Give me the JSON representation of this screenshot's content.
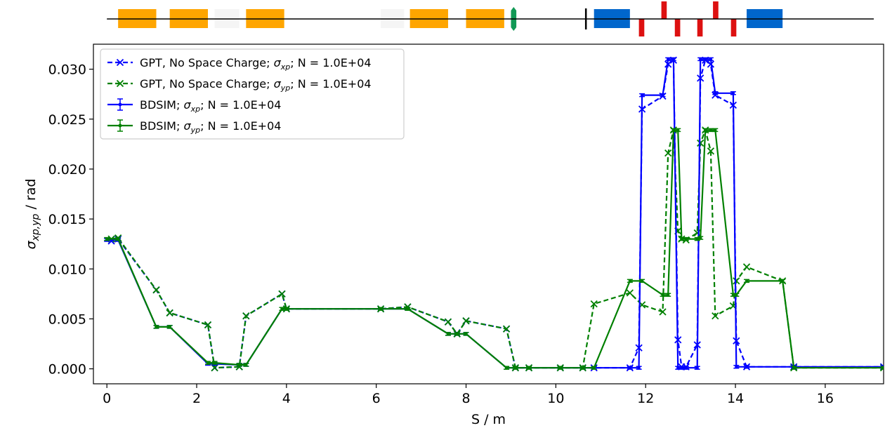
{
  "chart_data": {
    "type": "line",
    "xlabel": "S / m",
    "ylabel": "σ_xp,yp / rad",
    "xlim": [
      -0.3,
      17.3
    ],
    "ylim": [
      -0.0015,
      0.0325
    ],
    "xticks": [
      0,
      2,
      4,
      6,
      8,
      10,
      12,
      14,
      16
    ],
    "yticks": [
      0.0,
      0.005,
      0.01,
      0.015,
      0.02,
      0.025,
      0.03
    ],
    "ytick_labels": [
      "0.000",
      "0.005",
      "0.010",
      "0.015",
      "0.020",
      "0.025",
      "0.030"
    ],
    "legend_position": "top-left",
    "series": [
      {
        "name": "GPT, No Space Charge; σ_xp; N = 1.0E+04",
        "legend_prefix": "GPT, No Space Charge; ",
        "legend_sigma_sub": "xp",
        "legend_suffix": "; N = 1.0E+04",
        "color": "#0000ff",
        "style": "dashed",
        "marker": "x",
        "x": [
          0.1,
          0.25,
          1.1,
          1.4,
          2.25,
          2.4,
          2.95,
          3.1,
          3.9,
          4.0,
          6.1,
          6.7,
          7.6,
          7.8,
          8.0,
          8.9,
          9.1,
          9.4,
          10.1,
          10.6,
          10.85,
          11.65,
          11.85,
          11.92,
          12.38,
          12.5,
          12.62,
          12.72,
          12.8,
          12.9,
          13.15,
          13.22,
          13.33,
          13.45,
          13.55,
          13.95,
          14.02,
          14.25,
          15.3,
          17.3
        ],
        "y": [
          0.0128,
          0.013,
          0.0079,
          0.0056,
          0.0044,
          0.0001,
          0.0002,
          0.0053,
          0.0075,
          0.006,
          0.006,
          0.0062,
          0.0047,
          0.0035,
          0.0048,
          0.004,
          0.0001,
          0.0001,
          0.0001,
          0.0001,
          0.0001,
          0.0001,
          0.0021,
          0.026,
          0.0273,
          0.0305,
          0.0309,
          0.0029,
          0.0002,
          0.0002,
          0.0024,
          0.0291,
          0.0309,
          0.0305,
          0.0274,
          0.0264,
          0.0028,
          0.0002,
          0.0002,
          0.0002
        ]
      },
      {
        "name": "GPT, No Space Charge; σ_yp; N = 1.0E+04",
        "legend_prefix": "GPT, No Space Charge; ",
        "legend_sigma_sub": "yp",
        "legend_suffix": "; N = 1.0E+04",
        "color": "#008000",
        "style": "dashed",
        "marker": "x",
        "x": [
          0.1,
          0.25,
          1.1,
          1.4,
          2.25,
          2.4,
          2.95,
          3.1,
          3.9,
          4.0,
          6.1,
          6.7,
          7.6,
          7.8,
          8.0,
          8.9,
          9.1,
          9.4,
          10.1,
          10.6,
          10.85,
          11.65,
          11.92,
          12.38,
          12.5,
          12.62,
          12.72,
          12.8,
          12.9,
          13.15,
          13.22,
          13.33,
          13.45,
          13.55,
          13.95,
          14.02,
          14.25,
          15.05,
          15.3,
          17.3
        ],
        "y": [
          0.013,
          0.0131,
          0.0079,
          0.0056,
          0.0044,
          0.0001,
          0.0002,
          0.0053,
          0.0075,
          0.006,
          0.006,
          0.0062,
          0.0047,
          0.0035,
          0.0048,
          0.004,
          0.0001,
          0.0001,
          0.0001,
          0.0001,
          0.0065,
          0.0076,
          0.0064,
          0.0057,
          0.0216,
          0.0239,
          0.0138,
          0.013,
          0.0129,
          0.0136,
          0.0226,
          0.0239,
          0.0218,
          0.0053,
          0.0063,
          0.0088,
          0.0102,
          0.0088,
          0.0001,
          0.0001
        ]
      },
      {
        "name": "BDSIM; σ_xp; N = 1.0E+04",
        "legend_prefix": "BDSIM; ",
        "legend_sigma_sub": "xp",
        "legend_suffix": "; N = 1.0E+04",
        "color": "#0000ff",
        "style": "solid",
        "marker": "errorbar",
        "x": [
          0.0,
          0.25,
          1.1,
          1.4,
          2.25,
          2.4,
          2.95,
          3.1,
          3.9,
          4.0,
          6.1,
          6.7,
          7.6,
          7.8,
          8.0,
          8.9,
          9.1,
          9.4,
          10.1,
          10.6,
          10.85,
          11.65,
          11.85,
          11.92,
          12.38,
          12.5,
          12.62,
          12.72,
          12.8,
          12.9,
          13.15,
          13.22,
          13.33,
          13.45,
          13.55,
          13.95,
          14.02,
          14.25,
          15.3,
          17.3
        ],
        "y": [
          0.0129,
          0.0129,
          0.0042,
          0.0042,
          0.0005,
          0.0005,
          0.0004,
          0.0004,
          0.006,
          0.006,
          0.006,
          0.006,
          0.0035,
          0.0035,
          0.0035,
          0.0001,
          0.0001,
          0.0001,
          0.0001,
          0.0001,
          0.0001,
          0.0001,
          0.0001,
          0.0274,
          0.0274,
          0.031,
          0.031,
          0.0001,
          0.0001,
          0.0001,
          0.0001,
          0.031,
          0.031,
          0.031,
          0.0276,
          0.0276,
          0.0002,
          0.0002,
          0.0002,
          0.0002
        ]
      },
      {
        "name": "BDSIM; σ_yp; N = 1.0E+04",
        "legend_prefix": "BDSIM; ",
        "legend_sigma_sub": "yp",
        "legend_suffix": "; N = 1.0E+04",
        "color": "#008000",
        "style": "solid",
        "marker": "errorbar",
        "x": [
          0.0,
          0.25,
          1.1,
          1.4,
          2.25,
          2.4,
          2.95,
          3.1,
          3.9,
          4.0,
          6.1,
          6.7,
          7.6,
          7.8,
          8.0,
          8.9,
          9.1,
          9.4,
          10.1,
          10.6,
          10.85,
          11.65,
          11.92,
          12.38,
          12.5,
          12.62,
          12.72,
          12.8,
          12.9,
          13.15,
          13.22,
          13.33,
          13.45,
          13.55,
          13.95,
          14.02,
          14.25,
          15.05,
          15.3,
          17.3
        ],
        "y": [
          0.013,
          0.013,
          0.0042,
          0.0042,
          0.0006,
          0.0006,
          0.0004,
          0.0004,
          0.006,
          0.006,
          0.006,
          0.006,
          0.0035,
          0.0035,
          0.0035,
          0.0001,
          0.0001,
          0.0001,
          0.0001,
          0.0001,
          0.0001,
          0.0088,
          0.0088,
          0.0074,
          0.0074,
          0.0239,
          0.0239,
          0.013,
          0.013,
          0.013,
          0.0131,
          0.0239,
          0.0239,
          0.0239,
          0.0074,
          0.0074,
          0.0088,
          0.0088,
          0.0001,
          0.0001
        ]
      }
    ],
    "machine_elements": [
      {
        "kind": "orange-box",
        "start": 0.25,
        "end": 1.1
      },
      {
        "kind": "orange-box",
        "start": 1.4,
        "end": 2.25
      },
      {
        "kind": "grey-box",
        "start": 2.4,
        "end": 2.95
      },
      {
        "kind": "orange-box",
        "start": 3.1,
        "end": 3.95
      },
      {
        "kind": "grey-box",
        "start": 6.1,
        "end": 6.62
      },
      {
        "kind": "orange-box",
        "start": 6.75,
        "end": 7.6
      },
      {
        "kind": "orange-box",
        "start": 8.0,
        "end": 8.85
      },
      {
        "kind": "green-marker",
        "start": 9.0,
        "end": 9.12
      },
      {
        "kind": "black-line",
        "start": 10.65,
        "end": 10.67
      },
      {
        "kind": "blue-box",
        "start": 10.85,
        "end": 11.65
      },
      {
        "kind": "red-down",
        "start": 11.85,
        "end": 11.97
      },
      {
        "kind": "red-up",
        "start": 12.35,
        "end": 12.47
      },
      {
        "kind": "red-down",
        "start": 12.65,
        "end": 12.77
      },
      {
        "kind": "red-down",
        "start": 13.15,
        "end": 13.27
      },
      {
        "kind": "red-up",
        "start": 13.5,
        "end": 13.62
      },
      {
        "kind": "red-down",
        "start": 13.9,
        "end": 14.02
      },
      {
        "kind": "blue-box",
        "start": 14.25,
        "end": 15.05
      }
    ],
    "element_colors": {
      "orange-box": "#ffa500",
      "grey-box": "#f5f5f5",
      "blue-box": "#0066cc",
      "red-up": "#dd1111",
      "red-down": "#dd1111",
      "green-marker": "#119955",
      "black-line": "#000000"
    }
  }
}
